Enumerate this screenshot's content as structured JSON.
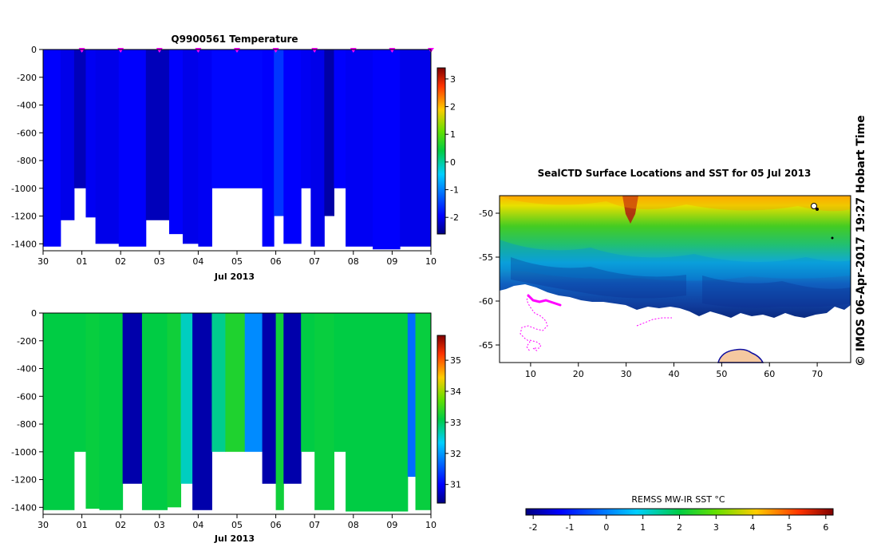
{
  "chart_data": [
    {
      "type": "heatmap",
      "title": "Q9900561  Temperature",
      "xlabel": "Jul 2013",
      "x_ticks": [
        "30",
        "01",
        "02",
        "03",
        "04",
        "05",
        "06",
        "07",
        "08",
        "09",
        "10"
      ],
      "y_ticks": [
        0,
        -200,
        -400,
        -600,
        -800,
        -1000,
        -1200,
        -1400
      ],
      "ylim": [
        -1450,
        0
      ],
      "colorbar": {
        "ticks": [
          3,
          2,
          1,
          0,
          -1,
          -2
        ],
        "range": [
          -2.6,
          3.4
        ]
      },
      "profile_markers": [
        1,
        2,
        3,
        4,
        5,
        6,
        7,
        8,
        9,
        10
      ],
      "profiles": [
        {
          "day": 0.0,
          "width": 0.45,
          "bottom": -1420,
          "value": -1.95
        },
        {
          "day": 0.45,
          "width": 0.35,
          "bottom": -1230,
          "value": -2.05
        },
        {
          "day": 0.8,
          "width": 0.3,
          "bottom": -1000,
          "value": -2.3
        },
        {
          "day": 1.1,
          "width": 0.25,
          "bottom": -1210,
          "value": -2.0
        },
        {
          "day": 1.35,
          "width": 0.6,
          "bottom": -1400,
          "value": -2.05
        },
        {
          "day": 1.95,
          "width": 0.7,
          "bottom": -1420,
          "value": -1.95
        },
        {
          "day": 2.65,
          "width": 0.6,
          "bottom": -1230,
          "value": -2.3
        },
        {
          "day": 3.25,
          "width": 0.35,
          "bottom": -1330,
          "value": -1.95
        },
        {
          "day": 3.6,
          "width": 0.4,
          "bottom": -1400,
          "value": -2.05
        },
        {
          "day": 4.0,
          "width": 0.35,
          "bottom": -1420,
          "value": -2.0
        },
        {
          "day": 4.35,
          "width": 1.3,
          "bottom": -1000,
          "value": -1.9
        },
        {
          "day": 5.65,
          "width": 0.3,
          "bottom": -1420,
          "value": -1.95
        },
        {
          "day": 5.95,
          "width": 0.25,
          "bottom": -1200,
          "value": -1.55
        },
        {
          "day": 6.2,
          "width": 0.45,
          "bottom": -1400,
          "value": -1.95
        },
        {
          "day": 6.65,
          "width": 0.25,
          "bottom": -1000,
          "value": -2.0
        },
        {
          "day": 6.9,
          "width": 0.35,
          "bottom": -1420,
          "value": -2.05
        },
        {
          "day": 7.25,
          "width": 0.25,
          "bottom": -1200,
          "value": -2.4
        },
        {
          "day": 7.5,
          "width": 0.3,
          "bottom": -1000,
          "value": -1.95
        },
        {
          "day": 7.8,
          "width": 0.7,
          "bottom": -1420,
          "value": -2.0
        },
        {
          "day": 8.5,
          "width": 0.7,
          "bottom": -1440,
          "value": -1.95
        },
        {
          "day": 9.2,
          "width": 0.8,
          "bottom": -1420,
          "value": -2.05
        }
      ]
    },
    {
      "type": "heatmap",
      "title": "",
      "xlabel": "Jul 2013",
      "x_ticks": [
        "30",
        "01",
        "02",
        "03",
        "04",
        "05",
        "06",
        "07",
        "08",
        "09",
        "10"
      ],
      "y_ticks": [
        0,
        -200,
        -400,
        -600,
        -800,
        -1000,
        -1200,
        -1400
      ],
      "ylim": [
        -1450,
        0
      ],
      "colorbar": {
        "ticks": [
          35,
          34,
          33,
          32,
          31
        ],
        "range": [
          30.4,
          35.8
        ]
      },
      "profiles": [
        {
          "day": 0.0,
          "width": 0.8,
          "bottom": -1420,
          "value": 33.1
        },
        {
          "day": 0.8,
          "width": 0.3,
          "bottom": -1000,
          "value": 33.1
        },
        {
          "day": 1.1,
          "width": 0.35,
          "bottom": -1410,
          "value": 33.15
        },
        {
          "day": 1.45,
          "width": 0.6,
          "bottom": -1420,
          "value": 33.1
        },
        {
          "day": 2.05,
          "width": 0.5,
          "bottom": -1230,
          "value": 30.6
        },
        {
          "day": 2.55,
          "width": 0.65,
          "bottom": -1420,
          "value": 33.1
        },
        {
          "day": 3.2,
          "width": 0.35,
          "bottom": -1400,
          "value": 33.2
        },
        {
          "day": 3.55,
          "width": 0.3,
          "bottom": -1230,
          "value": 32.6
        },
        {
          "day": 3.85,
          "width": 0.5,
          "bottom": -1420,
          "value": 30.6
        },
        {
          "day": 4.35,
          "width": 0.35,
          "bottom": -1000,
          "value": 32.8
        },
        {
          "day": 4.7,
          "width": 0.5,
          "bottom": -1000,
          "value": 33.3
        },
        {
          "day": 5.2,
          "width": 0.45,
          "bottom": -1000,
          "value": 31.9
        },
        {
          "day": 5.65,
          "width": 0.35,
          "bottom": -1230,
          "value": 30.6
        },
        {
          "day": 6.0,
          "width": 0.2,
          "bottom": -1420,
          "value": 33.2
        },
        {
          "day": 6.2,
          "width": 0.45,
          "bottom": -1230,
          "value": 30.6
        },
        {
          "day": 6.65,
          "width": 0.35,
          "bottom": -1000,
          "value": 33.1
        },
        {
          "day": 7.0,
          "width": 0.5,
          "bottom": -1420,
          "value": 33.15
        },
        {
          "day": 7.5,
          "width": 0.3,
          "bottom": -1000,
          "value": 33.1
        },
        {
          "day": 7.8,
          "width": 1.6,
          "bottom": -1430,
          "value": 33.1
        },
        {
          "day": 9.4,
          "width": 0.2,
          "bottom": -1180,
          "value": 31.7
        },
        {
          "day": 9.6,
          "width": 0.4,
          "bottom": -1420,
          "value": 33.15
        }
      ]
    },
    {
      "type": "heatmap",
      "title": "SealCTD Surface Locations and SST for 05 Jul 2013",
      "x_ticks": [
        10,
        20,
        30,
        40,
        50,
        60,
        70
      ],
      "y_ticks": [
        -50,
        -55,
        -60,
        -65
      ],
      "xlim": [
        3.5,
        77
      ],
      "ylim": [
        -67,
        -48
      ],
      "colorbar": {
        "title": "REMSS MW-IR SST °C",
        "ticks": [
          "-2",
          "-1",
          "0",
          "1",
          "2",
          "3",
          "4",
          "5",
          "6"
        ],
        "range": [
          -2.2,
          6.2
        ]
      },
      "seal_track_color": "#ff00ff"
    }
  ],
  "credit": "©  IMOS 06-Apr-2017 19:27 Hobart Time",
  "colors": {
    "land": "#f5c8a0",
    "track": "#ff00ff",
    "frame": "#000000"
  }
}
